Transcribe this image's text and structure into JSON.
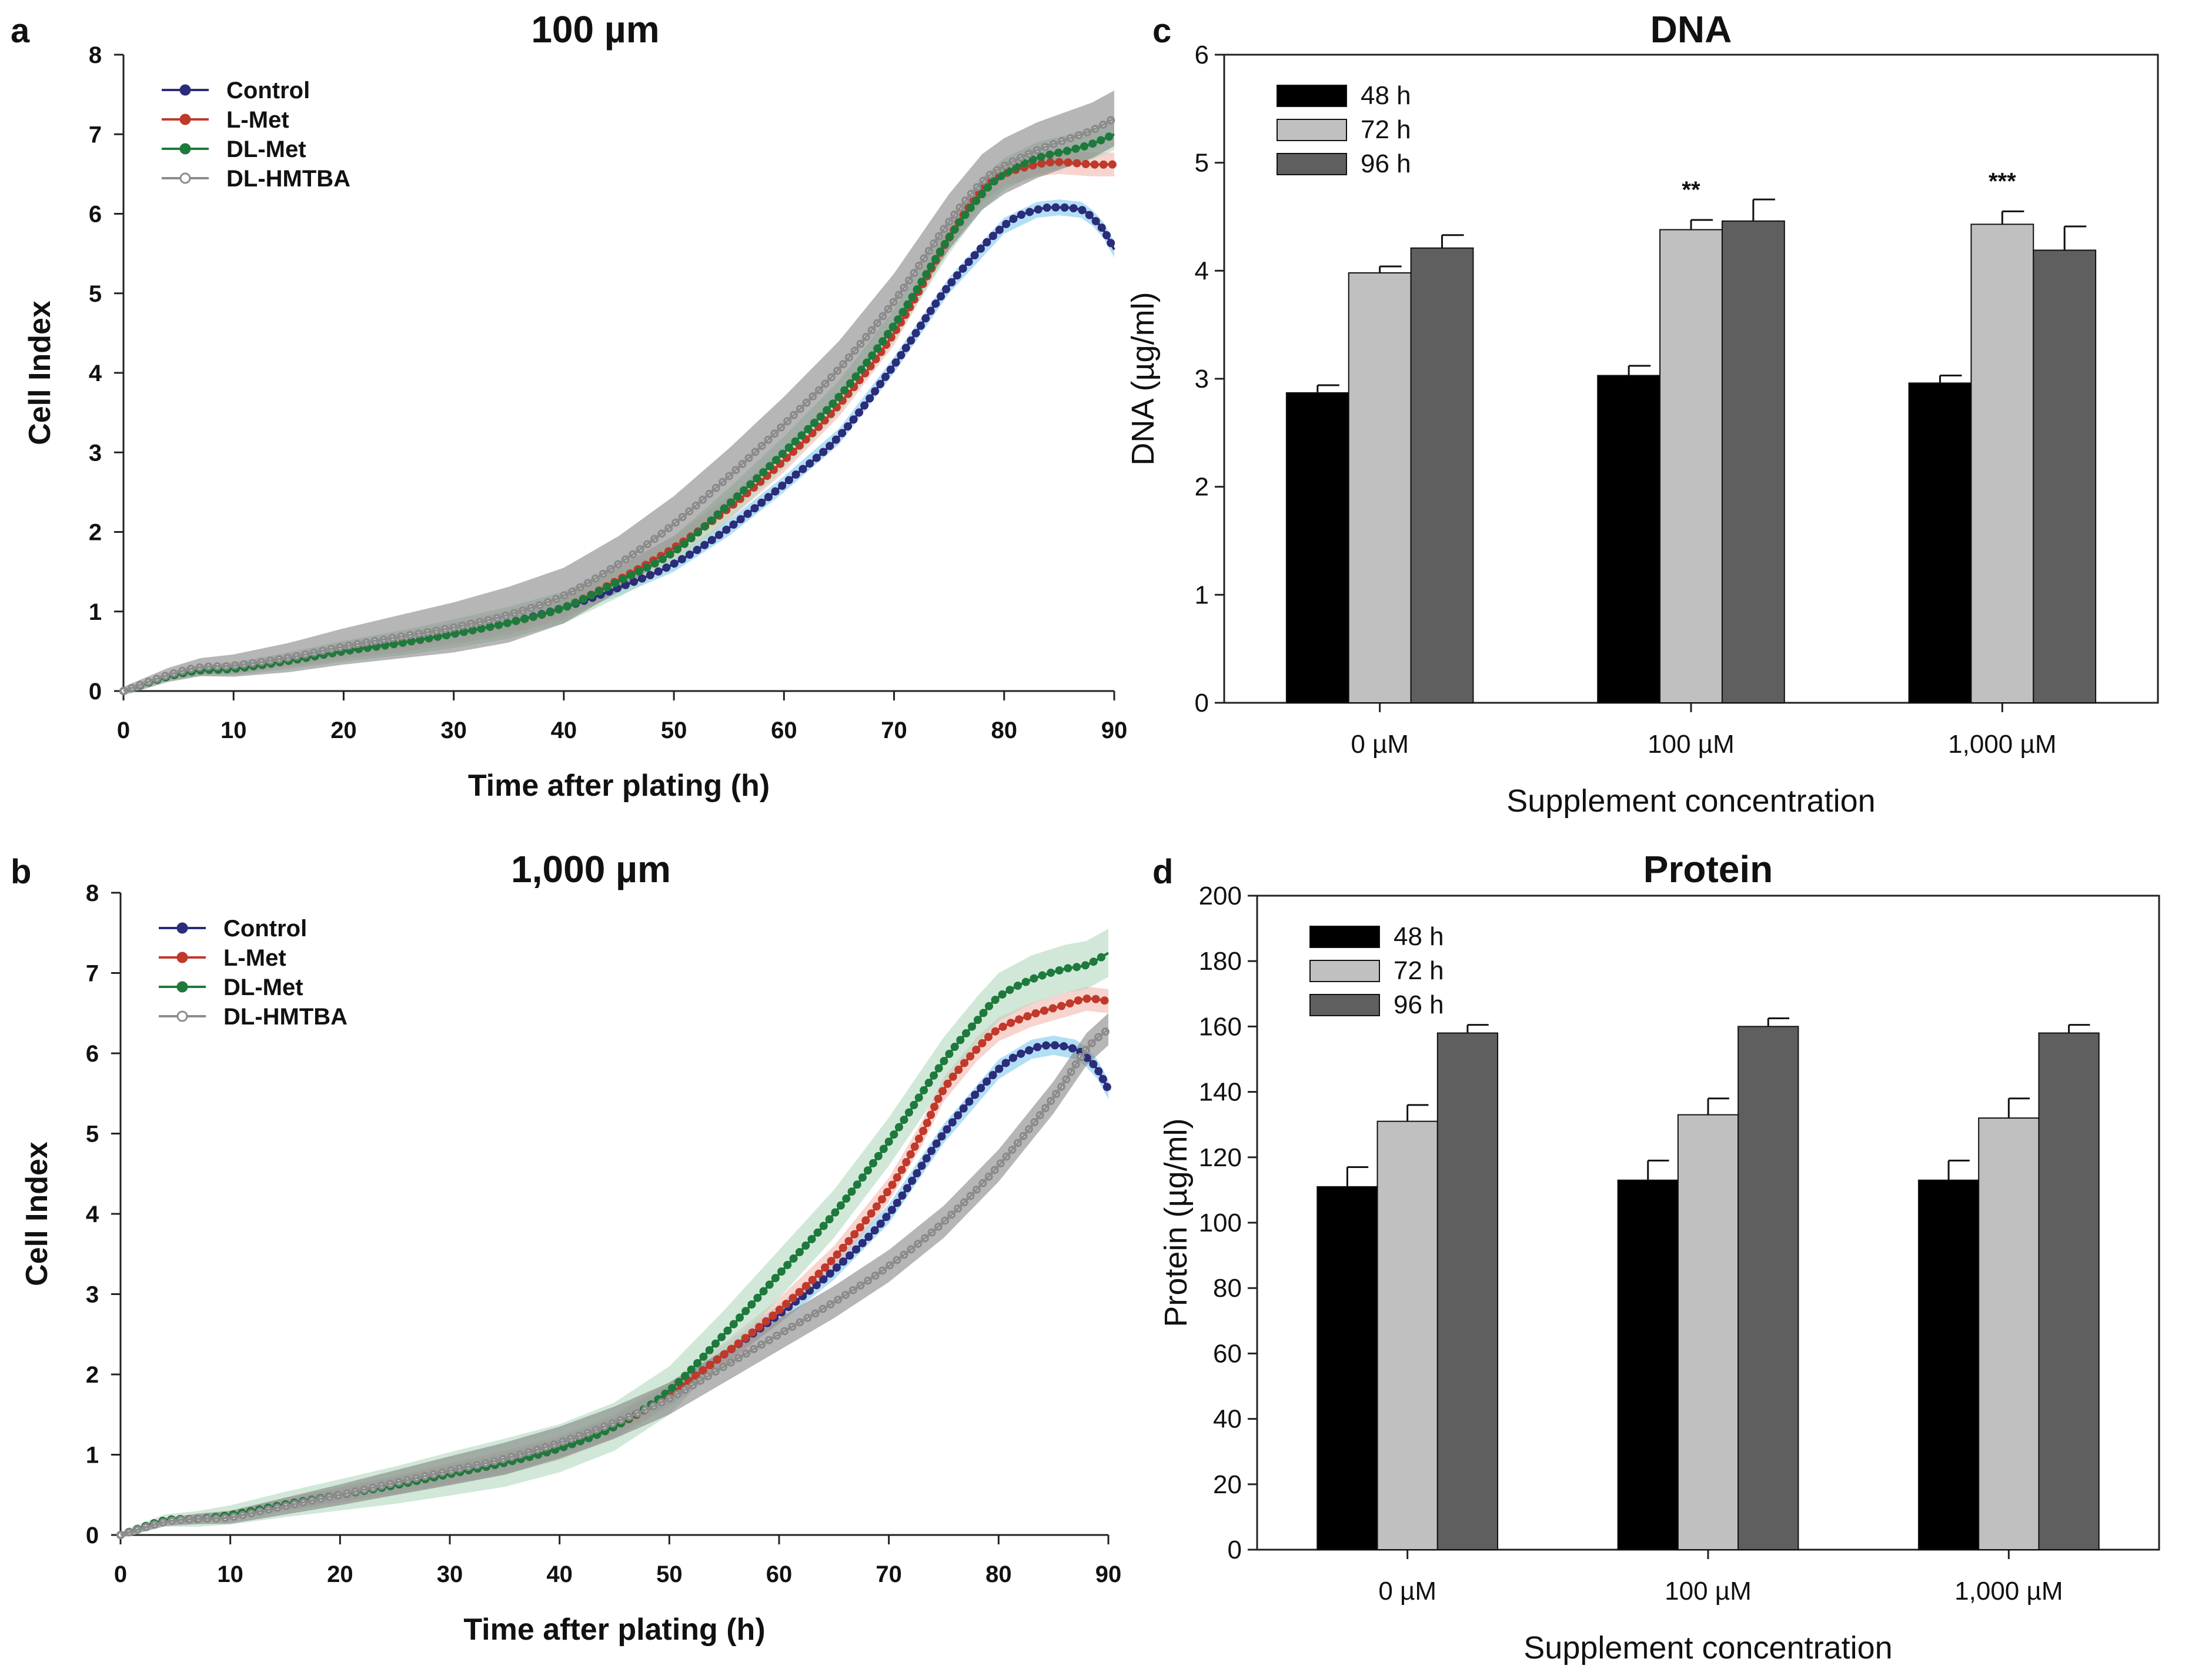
{
  "chart_data": [
    {
      "id": "a",
      "type": "line",
      "panel_label": "a",
      "title": "100 µm",
      "xlabel": "Time after plating (h)",
      "ylabel": "Cell Index",
      "xlim": [
        0,
        90
      ],
      "ylim": [
        0,
        8
      ],
      "xticks": [
        0,
        10,
        20,
        30,
        40,
        50,
        60,
        70,
        80,
        90
      ],
      "yticks": [
        0,
        1,
        2,
        3,
        4,
        5,
        6,
        7,
        8
      ],
      "legend_position": "top-left",
      "series": [
        {
          "name": "Control",
          "color": "#2b2c7a",
          "band": "#7fc9ec",
          "x": [
            0,
            4,
            7,
            10,
            15,
            20,
            25,
            30,
            35,
            40,
            45,
            50,
            55,
            60,
            65,
            70,
            75,
            80,
            83,
            85,
            87,
            88,
            89,
            90
          ],
          "y": [
            0,
            0.18,
            0.26,
            0.28,
            0.38,
            0.5,
            0.6,
            0.72,
            0.86,
            1.05,
            1.3,
            1.6,
            2.05,
            2.6,
            3.2,
            4.1,
            5.1,
            5.85,
            6.05,
            6.08,
            6.05,
            5.95,
            5.8,
            5.55
          ],
          "err": 0.1
        },
        {
          "name": "L-Met",
          "color": "#c0392b",
          "band": "#f2b8ad",
          "x": [
            0,
            4,
            7,
            10,
            15,
            20,
            25,
            30,
            35,
            40,
            45,
            50,
            55,
            60,
            65,
            70,
            75,
            78,
            80,
            83,
            85,
            88,
            90
          ],
          "y": [
            0,
            0.18,
            0.26,
            0.28,
            0.38,
            0.5,
            0.6,
            0.72,
            0.86,
            1.05,
            1.4,
            1.8,
            2.3,
            2.9,
            3.6,
            4.5,
            5.7,
            6.3,
            6.5,
            6.62,
            6.65,
            6.62,
            6.62
          ],
          "err": 0.15
        },
        {
          "name": "DL-Met",
          "color": "#1e7a3c",
          "band": "#b3d9c0",
          "x": [
            0,
            4,
            7,
            10,
            15,
            20,
            25,
            30,
            35,
            40,
            45,
            50,
            55,
            60,
            65,
            70,
            75,
            78,
            80,
            83,
            86,
            88,
            90
          ],
          "y": [
            0,
            0.18,
            0.26,
            0.28,
            0.38,
            0.5,
            0.6,
            0.72,
            0.86,
            1.05,
            1.38,
            1.75,
            2.35,
            3.0,
            3.7,
            4.6,
            5.7,
            6.25,
            6.5,
            6.7,
            6.8,
            6.88,
            7.0
          ],
          "err": 0.2
        },
        {
          "name": "DL-HMTBA",
          "color": "#8c8c8c",
          "band": "#7a7a7a",
          "x": [
            0,
            4,
            7,
            10,
            15,
            20,
            25,
            30,
            35,
            40,
            45,
            50,
            55,
            60,
            65,
            70,
            75,
            78,
            80,
            83,
            86,
            88,
            90
          ],
          "y": [
            0,
            0.2,
            0.3,
            0.32,
            0.42,
            0.56,
            0.68,
            0.8,
            0.96,
            1.2,
            1.6,
            2.1,
            2.7,
            3.35,
            4.05,
            4.9,
            5.9,
            6.4,
            6.6,
            6.8,
            6.95,
            7.05,
            7.2
          ],
          "err": 0.35
        }
      ]
    },
    {
      "id": "b",
      "type": "line",
      "panel_label": "b",
      "title": "1,000 µm",
      "xlabel": "Time after plating (h)",
      "ylabel": "Cell Index",
      "xlim": [
        0,
        90
      ],
      "ylim": [
        0,
        8
      ],
      "xticks": [
        0,
        10,
        20,
        30,
        40,
        50,
        60,
        70,
        80,
        90
      ],
      "yticks": [
        0,
        1,
        2,
        3,
        4,
        5,
        6,
        7,
        8
      ],
      "legend_position": "top-left",
      "series": [
        {
          "name": "Control",
          "color": "#2b2c7a",
          "band": "#7fc9ec",
          "x": [
            0,
            4,
            7,
            10,
            15,
            20,
            25,
            30,
            35,
            40,
            45,
            50,
            55,
            60,
            65,
            70,
            75,
            80,
            83,
            85,
            87,
            88,
            89,
            90
          ],
          "y": [
            0,
            0.18,
            0.2,
            0.25,
            0.38,
            0.5,
            0.62,
            0.76,
            0.9,
            1.08,
            1.35,
            1.75,
            2.25,
            2.75,
            3.3,
            4.0,
            5.0,
            5.8,
            6.05,
            6.1,
            6.05,
            5.95,
            5.8,
            5.55
          ],
          "err": 0.12
        },
        {
          "name": "L-Met",
          "color": "#c0392b",
          "band": "#f2b8ad",
          "x": [
            0,
            4,
            7,
            10,
            15,
            20,
            25,
            30,
            35,
            40,
            45,
            50,
            55,
            60,
            65,
            70,
            73,
            75,
            78,
            80,
            83,
            86,
            88,
            90
          ],
          "y": [
            0,
            0.18,
            0.2,
            0.25,
            0.38,
            0.5,
            0.62,
            0.76,
            0.9,
            1.08,
            1.35,
            1.75,
            2.25,
            2.8,
            3.45,
            4.3,
            5.0,
            5.55,
            6.05,
            6.3,
            6.48,
            6.6,
            6.68,
            6.65
          ],
          "err": 0.15
        },
        {
          "name": "DL-Met",
          "color": "#1e7a3c",
          "band": "#b3d9c0",
          "x": [
            0,
            4,
            7,
            10,
            15,
            20,
            25,
            30,
            35,
            40,
            45,
            50,
            55,
            60,
            65,
            70,
            75,
            78,
            80,
            83,
            86,
            88,
            90
          ],
          "y": [
            0,
            0.18,
            0.2,
            0.25,
            0.38,
            0.5,
            0.62,
            0.76,
            0.9,
            1.08,
            1.35,
            1.8,
            2.5,
            3.25,
            4.0,
            4.9,
            5.9,
            6.4,
            6.7,
            6.92,
            7.05,
            7.1,
            7.25
          ],
          "err": 0.3
        },
        {
          "name": "DL-HMTBA",
          "color": "#8c8c8c",
          "band": "#7a7a7a",
          "x": [
            0,
            4,
            7,
            10,
            15,
            20,
            25,
            30,
            35,
            40,
            45,
            50,
            55,
            60,
            65,
            70,
            75,
            80,
            85,
            88,
            90
          ],
          "y": [
            0,
            0.16,
            0.2,
            0.22,
            0.36,
            0.5,
            0.65,
            0.8,
            0.95,
            1.15,
            1.4,
            1.7,
            2.1,
            2.5,
            2.9,
            3.35,
            3.9,
            4.6,
            5.45,
            6.05,
            6.3
          ],
          "err": 0.2
        }
      ]
    },
    {
      "id": "c",
      "type": "bar",
      "panel_label": "c",
      "title": "DNA",
      "xlabel": "Supplement concentration",
      "ylabel": "DNA (µg/ml)",
      "categories": [
        "0 µM",
        "100 µM",
        "1,000 µM"
      ],
      "ylim": [
        0,
        6
      ],
      "yticks": [
        0,
        1,
        2,
        3,
        4,
        5,
        6
      ],
      "legend_position": "top-left",
      "significance": [
        "",
        "**",
        "***"
      ],
      "series": [
        {
          "name": "48 h",
          "color": "#000000",
          "values": [
            2.87,
            3.03,
            2.96
          ],
          "errors": [
            0.07,
            0.09,
            0.07
          ]
        },
        {
          "name": "72 h",
          "color": "#c0c0c0",
          "values": [
            3.98,
            4.38,
            4.43
          ],
          "errors": [
            0.06,
            0.09,
            0.12
          ]
        },
        {
          "name": "96 h",
          "color": "#5f5f5f",
          "values": [
            4.21,
            4.46,
            4.19
          ],
          "errors": [
            0.12,
            0.2,
            0.22
          ]
        }
      ]
    },
    {
      "id": "d",
      "type": "bar",
      "panel_label": "d",
      "title": "Protein",
      "xlabel": "Supplement concentration",
      "ylabel": "Protein (µg/ml)",
      "categories": [
        "0 µM",
        "100 µM",
        "1,000 µM"
      ],
      "ylim": [
        0,
        200
      ],
      "yticks": [
        0,
        20,
        40,
        60,
        80,
        100,
        120,
        140,
        160,
        180,
        200
      ],
      "legend_position": "top-left",
      "significance": [
        "",
        "",
        ""
      ],
      "series": [
        {
          "name": "48 h",
          "color": "#000000",
          "values": [
            111,
            113,
            113
          ],
          "errors": [
            6,
            6,
            6
          ]
        },
        {
          "name": "72 h",
          "color": "#c0c0c0",
          "values": [
            131,
            133,
            132
          ],
          "errors": [
            5,
            5,
            6
          ]
        },
        {
          "name": "96 h",
          "color": "#5f5f5f",
          "values": [
            158,
            160,
            158
          ],
          "errors": [
            2.5,
            2.5,
            2.5
          ]
        }
      ]
    }
  ]
}
